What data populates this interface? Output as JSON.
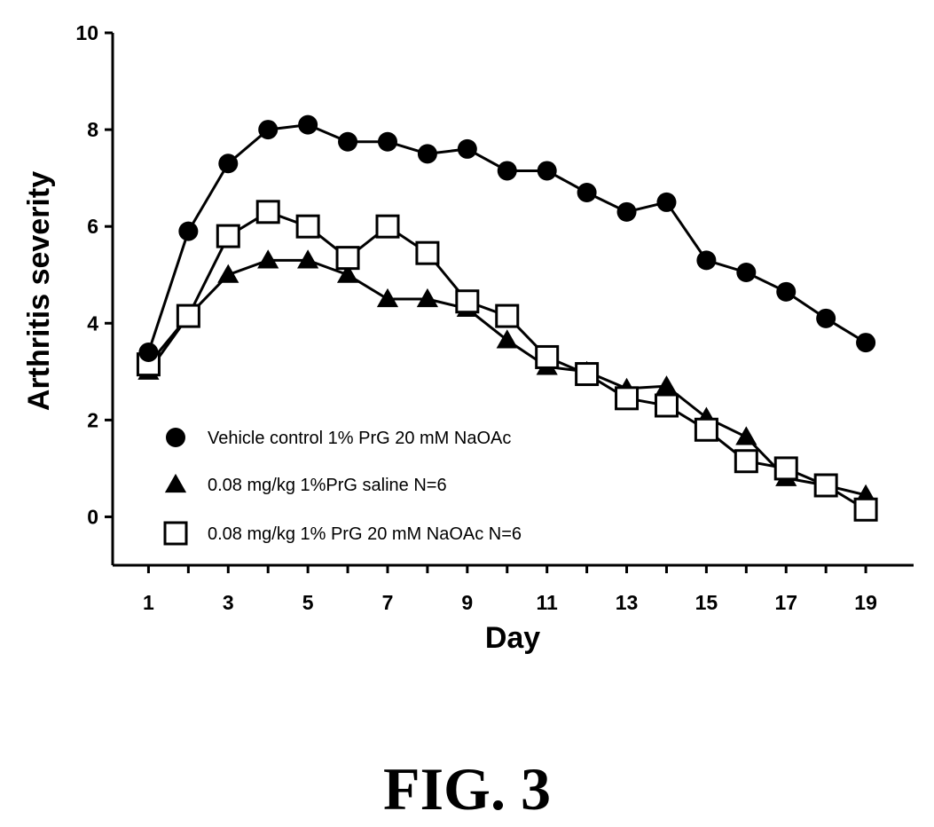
{
  "figure_caption": "FIG. 3",
  "chart_data": {
    "type": "line",
    "xlabel": "Day",
    "ylabel": "Arthritis severity",
    "xlim": [
      0.1,
      20.2
    ],
    "ylim": [
      -1,
      10
    ],
    "x_ticks": [
      1,
      3,
      5,
      7,
      9,
      11,
      13,
      15,
      17,
      19
    ],
    "y_ticks": [
      0,
      2,
      4,
      6,
      8,
      10
    ],
    "legend_position": "bottom-left",
    "series": [
      {
        "name": "Vehicle control 1% PrG 20 mM NaOAc",
        "marker": "circle",
        "color": "#000000",
        "x": [
          1,
          2,
          3,
          4,
          5,
          6,
          7,
          8,
          9,
          10,
          11,
          12,
          13,
          14,
          15,
          16,
          17,
          18,
          19
        ],
        "y": [
          3.4,
          5.9,
          7.3,
          8.0,
          8.1,
          7.75,
          7.75,
          7.5,
          7.6,
          7.15,
          7.15,
          6.7,
          6.3,
          6.5,
          5.3,
          5.05,
          4.65,
          4.1,
          3.6
        ]
      },
      {
        "name": "0.08 mg/kg 1%PrG saline N=6",
        "marker": "triangle",
        "color": "#000000",
        "x": [
          1,
          2,
          3,
          4,
          5,
          6,
          7,
          8,
          9,
          10,
          11,
          12,
          13,
          14,
          15,
          16,
          17,
          18,
          19
        ],
        "y": [
          3.0,
          4.15,
          5.0,
          5.3,
          5.3,
          5.0,
          4.5,
          4.5,
          4.3,
          3.65,
          3.1,
          3.0,
          2.65,
          2.7,
          2.05,
          1.65,
          0.8,
          0.65,
          0.45
        ]
      },
      {
        "name": "0.08 mg/kg 1% PrG 20 mM NaOAc N=6",
        "marker": "square-open",
        "color": "#000000",
        "x": [
          1,
          2,
          3,
          4,
          5,
          6,
          7,
          8,
          9,
          10,
          11,
          12,
          13,
          14,
          15,
          16,
          17,
          18,
          19
        ],
        "y": [
          3.15,
          4.15,
          5.8,
          6.3,
          6.0,
          5.35,
          6.0,
          5.45,
          4.45,
          4.15,
          3.3,
          2.95,
          2.45,
          2.3,
          1.8,
          1.15,
          1.0,
          0.65,
          0.15
        ]
      }
    ]
  }
}
